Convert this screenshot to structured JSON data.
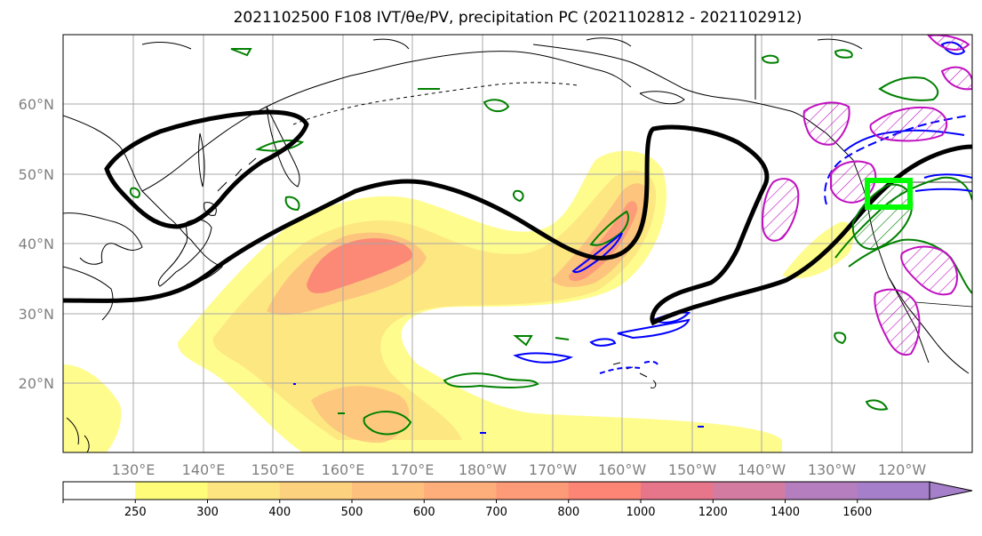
{
  "title": "2021102500 F108 IVT/θe/PV, precipitation PC (2021102812 - 2021102912)",
  "latitude_labels": [
    "60°N",
    "50°N",
    "40°N",
    "30°N",
    "20°N"
  ],
  "longitude_labels": [
    "130°E",
    "140°E",
    "150°E",
    "160°E",
    "170°E",
    "180°W",
    "170°W",
    "160°W",
    "150°W",
    "140°W",
    "130°W",
    "120°W"
  ],
  "colorbar": {
    "levels": [
      "250",
      "300",
      "400",
      "500",
      "600",
      "700",
      "800",
      "1000",
      "1200",
      "1400",
      "1600"
    ],
    "colors": [
      "#ffffff",
      "#fffc7a",
      "#fde480",
      "#fdd27f",
      "#fdc07d",
      "#fdae7b",
      "#fd9a78",
      "#fc8576",
      "#e8768a",
      "#d47ba1",
      "#b57fbf",
      "#a57fc9"
    ]
  },
  "map": {
    "projection": "PlateCarree",
    "extent_lon": [
      120,
      250
    ],
    "extent_lat": [
      10,
      70
    ],
    "contour_colors": {
      "theta_e": "#000000",
      "pv_positive": "#c010c0",
      "precip_pc": "#008000",
      "pv_negative": "#0000ff",
      "target_box": "#00ff00"
    }
  }
}
